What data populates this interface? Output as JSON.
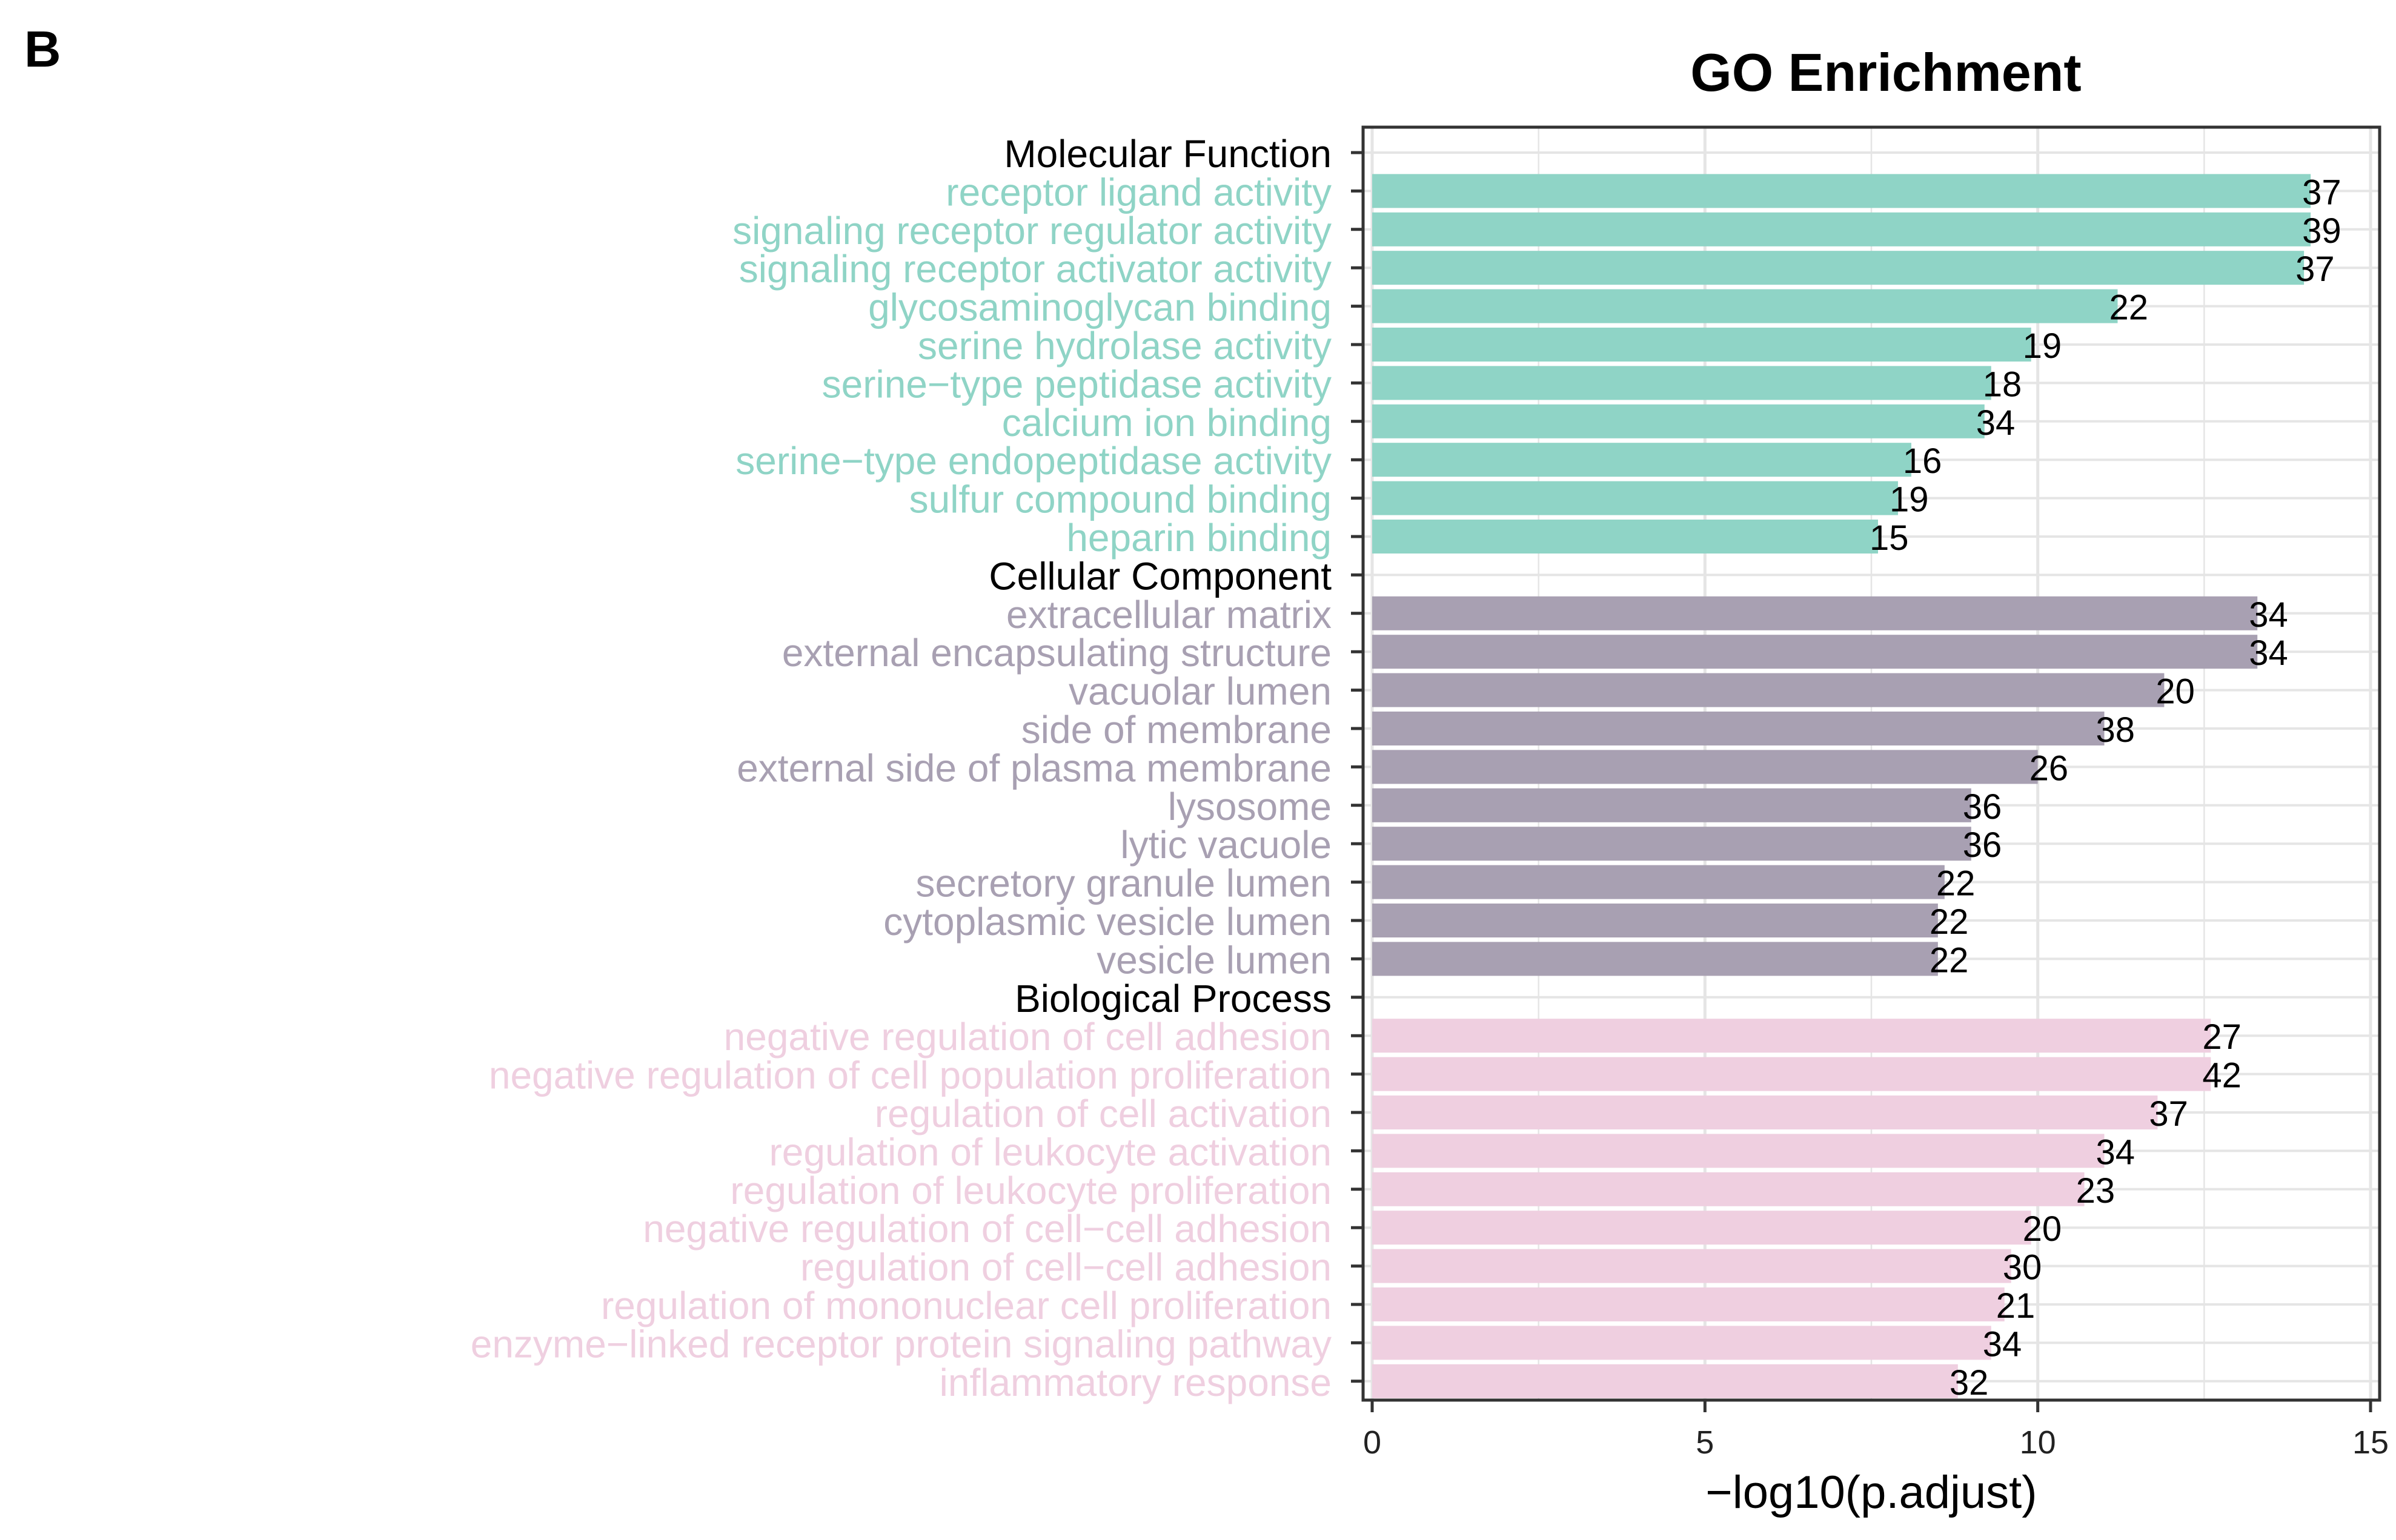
{
  "panel_label": "B",
  "colors": {
    "Molecular Function": "#8fd4c6",
    "Cellular Component": "#a8a0b2",
    "Biological Process": "#efcfe0",
    "group_header_text": "#000000",
    "grid": "#e5e5e5",
    "border": "#333333"
  },
  "chart_data": {
    "type": "bar",
    "orientation": "horizontal",
    "title": "GO Enrichment",
    "xlabel": "−log10(p.adjust)",
    "ylabel": "",
    "xlim": [
      0,
      15
    ],
    "xticks": [
      "0",
      "5",
      "10",
      "15"
    ],
    "grid": true,
    "value_label": "gene count",
    "groups": [
      {
        "name": "Molecular Function",
        "terms": [
          {
            "label": "receptor ligand activity",
            "value": 14.1,
            "count": "37"
          },
          {
            "label": "signaling receptor regulator activity",
            "value": 14.1,
            "count": "39"
          },
          {
            "label": "signaling receptor activator activity",
            "value": 14.0,
            "count": "37"
          },
          {
            "label": "glycosaminoglycan binding",
            "value": 11.2,
            "count": "22"
          },
          {
            "label": "serine hydrolase activity",
            "value": 9.9,
            "count": "19"
          },
          {
            "label": "serine−type peptidase activity",
            "value": 9.3,
            "count": "18"
          },
          {
            "label": "calcium ion binding",
            "value": 9.2,
            "count": "34"
          },
          {
            "label": "serine−type endopeptidase activity",
            "value": 8.1,
            "count": "16"
          },
          {
            "label": "sulfur compound binding",
            "value": 7.9,
            "count": "19"
          },
          {
            "label": "heparin binding",
            "value": 7.6,
            "count": "15"
          }
        ]
      },
      {
        "name": "Cellular Component",
        "terms": [
          {
            "label": "extracellular matrix",
            "value": 13.3,
            "count": "34"
          },
          {
            "label": "external encapsulating structure",
            "value": 13.3,
            "count": "34"
          },
          {
            "label": "vacuolar lumen",
            "value": 11.9,
            "count": "20"
          },
          {
            "label": "side of membrane",
            "value": 11.0,
            "count": "38"
          },
          {
            "label": "external side of plasma membrane",
            "value": 10.0,
            "count": "26"
          },
          {
            "label": "lysosome",
            "value": 9.0,
            "count": "36"
          },
          {
            "label": "lytic vacuole",
            "value": 9.0,
            "count": "36"
          },
          {
            "label": "secretory granule lumen",
            "value": 8.6,
            "count": "22"
          },
          {
            "label": "cytoplasmic vesicle lumen",
            "value": 8.5,
            "count": "22"
          },
          {
            "label": "vesicle lumen",
            "value": 8.5,
            "count": "22"
          }
        ]
      },
      {
        "name": "Biological Process",
        "terms": [
          {
            "label": "negative regulation of cell adhesion",
            "value": 12.6,
            "count": "27"
          },
          {
            "label": "negative regulation of cell population proliferation",
            "value": 12.6,
            "count": "42"
          },
          {
            "label": "regulation of cell activation",
            "value": 11.8,
            "count": "37"
          },
          {
            "label": "regulation of leukocyte activation",
            "value": 11.0,
            "count": "34"
          },
          {
            "label": "regulation of leukocyte proliferation",
            "value": 10.7,
            "count": "23"
          },
          {
            "label": "negative regulation of cell−cell adhesion",
            "value": 9.9,
            "count": "20"
          },
          {
            "label": "regulation of cell−cell adhesion",
            "value": 9.6,
            "count": "30"
          },
          {
            "label": "regulation of mononuclear cell proliferation",
            "value": 9.5,
            "count": "21"
          },
          {
            "label": "enzyme−linked receptor protein signaling pathway",
            "value": 9.3,
            "count": "34"
          },
          {
            "label": "inflammatory response",
            "value": 8.8,
            "count": "32"
          }
        ]
      }
    ]
  }
}
